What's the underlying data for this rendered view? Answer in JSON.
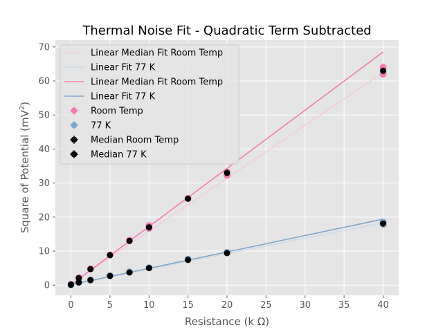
{
  "chart_data": {
    "type": "scatter",
    "title": "Thermal Noise Fit - Quadratic Term Subtracted",
    "xlabel": "Resistance (k Ω)",
    "ylabel_main": "Square of Potential (mV",
    "ylabel_sup": "2",
    "ylabel_close": ")",
    "xlim": [
      -2,
      42
    ],
    "ylim": [
      -3,
      72
    ],
    "xticks": [
      0,
      5,
      10,
      15,
      20,
      25,
      30,
      35,
      40
    ],
    "yticks": [
      0,
      10,
      20,
      30,
      40,
      50,
      60,
      70
    ],
    "grid": true,
    "legend_position": "top-left",
    "colors": {
      "pink": "#f17cb0",
      "pink_faint": "#f4cedd",
      "blue": "#7ea6cb",
      "blue_faint": "#cfdbe8",
      "black": "#000000",
      "axes_bg": "#e5e5e5",
      "grid": "#ffffff"
    },
    "series": [
      {
        "name": "Linear Median Fit Room Temp",
        "kind": "line",
        "color_key": "pink_faint",
        "x": [
          0,
          40
        ],
        "y": [
          0.3,
          62.5
        ]
      },
      {
        "name": "Linear Fit 77 K",
        "kind": "line",
        "color_key": "blue_faint",
        "x": [
          0,
          40
        ],
        "y": [
          0.2,
          18.3
        ]
      },
      {
        "name": "Linear Median Fit Room Temp",
        "kind": "line",
        "color_key": "pink",
        "x": [
          0,
          40
        ],
        "y": [
          0.1,
          68.5
        ]
      },
      {
        "name": "Linear Fit 77 K",
        "kind": "line",
        "color_key": "blue",
        "x": [
          0,
          40
        ],
        "y": [
          0.1,
          19.4
        ]
      },
      {
        "name": "Room Temp",
        "kind": "points",
        "color_key": "pink",
        "x": [
          0,
          1,
          2.5,
          5,
          7.5,
          10,
          10,
          15,
          20,
          20,
          40,
          40
        ],
        "y": [
          0.2,
          2.1,
          4.8,
          8.9,
          13.2,
          16.7,
          17.5,
          25.5,
          32.3,
          33.3,
          62.0,
          64.0
        ]
      },
      {
        "name": "77 K",
        "kind": "points",
        "color_key": "blue",
        "x": [
          0,
          1,
          2.5,
          5,
          7.5,
          10,
          15,
          20,
          40,
          40
        ],
        "y": [
          0.1,
          0.8,
          1.5,
          2.8,
          3.9,
          5.1,
          7.6,
          9.6,
          17.9,
          18.5
        ]
      },
      {
        "name": "Median Room Temp",
        "kind": "points",
        "color_key": "black",
        "x": [
          0,
          1,
          2.5,
          5,
          7.5,
          10,
          15,
          20,
          40
        ],
        "y": [
          0.2,
          2.1,
          4.7,
          8.8,
          13.0,
          17.0,
          25.4,
          33.0,
          63.0
        ]
      },
      {
        "name": "Median 77 K",
        "kind": "points",
        "color_key": "black",
        "x": [
          0,
          1,
          2.5,
          5,
          7.5,
          10,
          15,
          20,
          40
        ],
        "y": [
          0.1,
          0.8,
          1.5,
          2.7,
          3.7,
          5.0,
          7.4,
          9.4,
          18.1
        ]
      }
    ]
  }
}
